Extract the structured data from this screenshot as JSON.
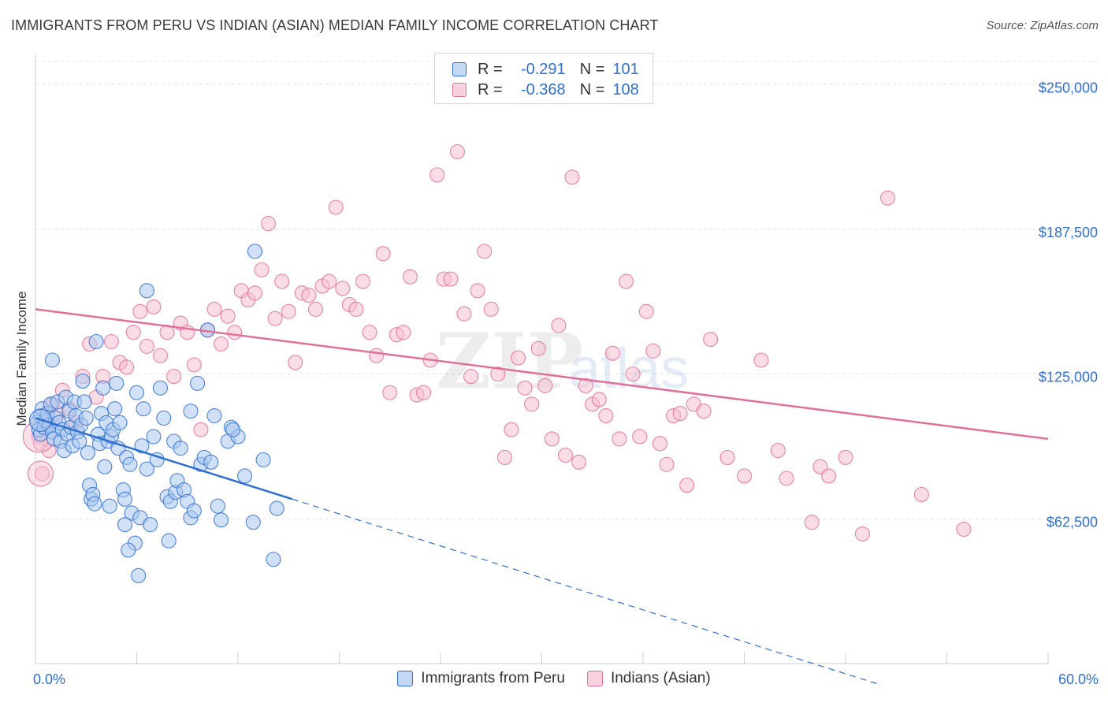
{
  "title": "IMMIGRANTS FROM PERU VS INDIAN (ASIAN) MEDIAN FAMILY INCOME CORRELATION CHART",
  "source": "Source: ZipAtlas.com",
  "colors": {
    "blue": "#2f6fd0",
    "blue_fill": "#aac8f0",
    "pink": "#e0709a",
    "pink_fill": "#f6bfd0",
    "grid": "#e2e2e2"
  },
  "legend": {
    "rows": [
      {
        "r_label": "R =",
        "r_value": "-0.291",
        "n_label": "N =",
        "n_value": "101"
      },
      {
        "r_label": "R =",
        "r_value": "-0.368",
        "n_label": "N =",
        "n_value": "108"
      }
    ]
  },
  "chart_data": {
    "type": "scatter",
    "title": "IMMIGRANTS FROM PERU VS INDIAN (ASIAN) MEDIAN FAMILY INCOME CORRELATION CHART",
    "xlabel": "",
    "ylabel": "Median Family Income",
    "xlim": [
      0,
      60
    ],
    "ylim": [
      0,
      262000
    ],
    "x_tick_labels": [
      "0.0%",
      "60.0%"
    ],
    "y_ticks": [
      62500,
      125000,
      187500,
      250000
    ],
    "y_tick_labels": [
      "$62,500",
      "$125,000",
      "$187,500",
      "$250,000"
    ],
    "watermark": "ZIPatlas",
    "series": [
      {
        "name": "Immigrants from Peru",
        "R": -0.291,
        "N": 101,
        "trend": {
          "x_start": 0,
          "y_start": 106000,
          "x_solid_end": 15.2,
          "x_end": 50,
          "slope": -2300
        },
        "points": [
          [
            0.1,
            104000
          ],
          [
            0.2,
            101000
          ],
          [
            0.3,
            107000
          ],
          [
            0.3,
            99000
          ],
          [
            0.4,
            110000
          ],
          [
            0.5,
            102000
          ],
          [
            0.6,
            105000
          ],
          [
            0.7,
            108000
          ],
          [
            0.8,
            103000
          ],
          [
            0.9,
            112000
          ],
          [
            1.0,
            100000
          ],
          [
            1.1,
            97000
          ],
          [
            1.2,
            106000
          ],
          [
            1.3,
            113000
          ],
          [
            1.4,
            104000
          ],
          [
            1.0,
            131000
          ],
          [
            1.5,
            96000
          ],
          [
            1.6,
            101000
          ],
          [
            1.7,
            92000
          ],
          [
            1.8,
            115000
          ],
          [
            1.9,
            99000
          ],
          [
            2.0,
            109000
          ],
          [
            2.1,
            102000
          ],
          [
            2.2,
            94000
          ],
          [
            2.3,
            113000
          ],
          [
            2.4,
            107000
          ],
          [
            2.5,
            100000
          ],
          [
            2.6,
            96000
          ],
          [
            2.7,
            103000
          ],
          [
            2.8,
            122000
          ],
          [
            2.9,
            113000
          ],
          [
            3.0,
            106000
          ],
          [
            3.1,
            91000
          ],
          [
            3.2,
            77000
          ],
          [
            3.3,
            71000
          ],
          [
            3.4,
            73000
          ],
          [
            3.5,
            69000
          ],
          [
            3.6,
            139000
          ],
          [
            3.7,
            99000
          ],
          [
            3.8,
            95000
          ],
          [
            3.9,
            108000
          ],
          [
            4.0,
            119000
          ],
          [
            4.1,
            85000
          ],
          [
            4.2,
            104000
          ],
          [
            4.3,
            96000
          ],
          [
            4.4,
            68000
          ],
          [
            4.5,
            98000
          ],
          [
            4.6,
            101000
          ],
          [
            4.7,
            110000
          ],
          [
            4.8,
            121000
          ],
          [
            4.9,
            93000
          ],
          [
            5.0,
            104000
          ],
          [
            5.2,
            75000
          ],
          [
            5.3,
            71000
          ],
          [
            5.4,
            89000
          ],
          [
            5.6,
            86000
          ],
          [
            5.7,
            65000
          ],
          [
            5.9,
            52000
          ],
          [
            6.0,
            117000
          ],
          [
            6.2,
            63000
          ],
          [
            6.3,
            94000
          ],
          [
            6.4,
            110000
          ],
          [
            6.6,
            84000
          ],
          [
            6.8,
            60000
          ],
          [
            7.0,
            98000
          ],
          [
            7.2,
            88000
          ],
          [
            7.4,
            119000
          ],
          [
            7.6,
            106000
          ],
          [
            7.8,
            72000
          ],
          [
            8.0,
            70000
          ],
          [
            8.2,
            96000
          ],
          [
            8.3,
            74000
          ],
          [
            8.4,
            79000
          ],
          [
            8.6,
            93000
          ],
          [
            8.8,
            75000
          ],
          [
            9.0,
            70000
          ],
          [
            9.2,
            63000
          ],
          [
            9.4,
            66000
          ],
          [
            9.6,
            121000
          ],
          [
            9.8,
            86000
          ],
          [
            10.0,
            89000
          ],
          [
            10.2,
            144000
          ],
          [
            10.4,
            87000
          ],
          [
            10.6,
            107000
          ],
          [
            10.8,
            68000
          ],
          [
            11.0,
            62000
          ],
          [
            11.4,
            96000
          ],
          [
            11.6,
            102000
          ],
          [
            12.0,
            98000
          ],
          [
            12.4,
            81000
          ],
          [
            12.9,
            61000
          ],
          [
            13.0,
            178000
          ],
          [
            13.5,
            88000
          ],
          [
            14.1,
            45000
          ],
          [
            14.3,
            67000
          ],
          [
            5.3,
            60000
          ],
          [
            5.5,
            49000
          ],
          [
            6.1,
            38000
          ],
          [
            7.9,
            53000
          ],
          [
            6.6,
            161000
          ],
          [
            9.2,
            109000
          ],
          [
            11.7,
            101000
          ]
        ]
      },
      {
        "name": "Indians (Asian)",
        "R": -0.368,
        "N": 108,
        "trend": {
          "x_start": 0,
          "y_start": 153000,
          "x_end": 60,
          "y_end": 97000
        },
        "points": [
          [
            0.2,
            98000
          ],
          [
            0.3,
            95000
          ],
          [
            0.4,
            82000
          ],
          [
            0.6,
            105000
          ],
          [
            0.8,
            92000
          ],
          [
            1.0,
            112000
          ],
          [
            1.3,
            108000
          ],
          [
            1.6,
            118000
          ],
          [
            2.0,
            110000
          ],
          [
            2.4,
            104000
          ],
          [
            2.8,
            124000
          ],
          [
            3.2,
            138000
          ],
          [
            3.6,
            115000
          ],
          [
            4.0,
            124000
          ],
          [
            4.5,
            139000
          ],
          [
            5.0,
            130000
          ],
          [
            5.4,
            128000
          ],
          [
            5.8,
            143000
          ],
          [
            6.2,
            152000
          ],
          [
            6.6,
            137000
          ],
          [
            7.0,
            154000
          ],
          [
            7.4,
            133000
          ],
          [
            7.8,
            143000
          ],
          [
            8.2,
            124000
          ],
          [
            8.6,
            147000
          ],
          [
            9.0,
            143000
          ],
          [
            9.4,
            129000
          ],
          [
            9.8,
            101000
          ],
          [
            10.2,
            144000
          ],
          [
            10.6,
            153000
          ],
          [
            11.0,
            138000
          ],
          [
            11.4,
            150000
          ],
          [
            11.8,
            143000
          ],
          [
            12.2,
            161000
          ],
          [
            12.6,
            157000
          ],
          [
            13.0,
            160000
          ],
          [
            13.4,
            170000
          ],
          [
            13.8,
            190000
          ],
          [
            14.2,
            149000
          ],
          [
            14.6,
            165000
          ],
          [
            15.0,
            152000
          ],
          [
            15.4,
            130000
          ],
          [
            15.8,
            160000
          ],
          [
            16.2,
            159000
          ],
          [
            16.6,
            153000
          ],
          [
            17.0,
            163000
          ],
          [
            17.4,
            165000
          ],
          [
            17.8,
            197000
          ],
          [
            18.2,
            162000
          ],
          [
            18.6,
            155000
          ],
          [
            19.0,
            153000
          ],
          [
            19.4,
            165000
          ],
          [
            19.8,
            143000
          ],
          [
            20.2,
            133000
          ],
          [
            20.6,
            177000
          ],
          [
            21.0,
            117000
          ],
          [
            21.4,
            142000
          ],
          [
            21.8,
            143000
          ],
          [
            22.2,
            167000
          ],
          [
            22.6,
            116000
          ],
          [
            23.0,
            117000
          ],
          [
            23.4,
            131000
          ],
          [
            23.8,
            211000
          ],
          [
            24.2,
            166000
          ],
          [
            24.6,
            166000
          ],
          [
            25.0,
            221000
          ],
          [
            25.4,
            151000
          ],
          [
            25.8,
            124000
          ],
          [
            26.2,
            161000
          ],
          [
            26.6,
            178000
          ],
          [
            27.0,
            153000
          ],
          [
            27.4,
            125000
          ],
          [
            27.8,
            89000
          ],
          [
            28.2,
            101000
          ],
          [
            28.6,
            132000
          ],
          [
            29.0,
            119000
          ],
          [
            29.4,
            112000
          ],
          [
            29.8,
            136000
          ],
          [
            30.2,
            120000
          ],
          [
            30.6,
            97000
          ],
          [
            31.0,
            146000
          ],
          [
            31.4,
            90000
          ],
          [
            31.8,
            210000
          ],
          [
            32.2,
            87000
          ],
          [
            32.6,
            120000
          ],
          [
            33.0,
            112000
          ],
          [
            33.4,
            114000
          ],
          [
            33.8,
            107000
          ],
          [
            34.2,
            134000
          ],
          [
            34.6,
            97000
          ],
          [
            35.0,
            165000
          ],
          [
            35.4,
            125000
          ],
          [
            35.8,
            98000
          ],
          [
            36.2,
            152000
          ],
          [
            36.6,
            135000
          ],
          [
            37.0,
            95000
          ],
          [
            37.4,
            86000
          ],
          [
            37.8,
            107000
          ],
          [
            38.2,
            108000
          ],
          [
            38.6,
            77000
          ],
          [
            39.0,
            112000
          ],
          [
            39.6,
            109000
          ],
          [
            40.0,
            140000
          ],
          [
            41.0,
            89000
          ],
          [
            42.0,
            81000
          ],
          [
            43.0,
            131000
          ],
          [
            44.0,
            92000
          ],
          [
            44.5,
            80000
          ],
          [
            46.0,
            61000
          ],
          [
            46.5,
            85000
          ],
          [
            47.0,
            81000
          ],
          [
            48.0,
            89000
          ],
          [
            49.0,
            56000
          ],
          [
            50.5,
            201000
          ],
          [
            52.5,
            73000
          ],
          [
            55.0,
            58000
          ]
        ]
      }
    ]
  },
  "bottom_legend": {
    "items": [
      {
        "label": "Immigrants from Peru"
      },
      {
        "label": "Indians (Asian)"
      }
    ]
  },
  "x_axis": {
    "min_label": "0.0%",
    "max_label": "60.0%"
  }
}
